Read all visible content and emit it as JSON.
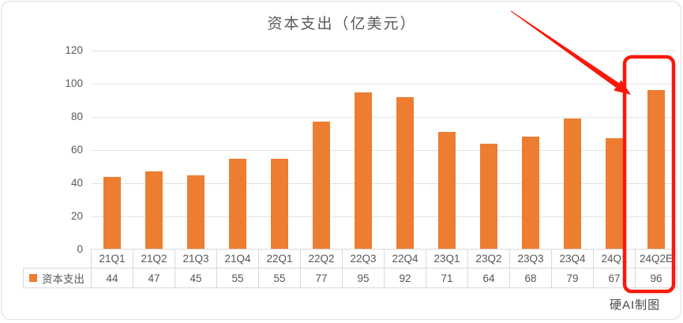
{
  "chart_data": {
    "type": "bar",
    "title": "资本支出（亿美元）",
    "categories": [
      "21Q1",
      "21Q2",
      "21Q3",
      "21Q4",
      "22Q1",
      "22Q2",
      "22Q3",
      "22Q4",
      "23Q1",
      "23Q2",
      "23Q3",
      "23Q4",
      "24Q1",
      "24Q2E"
    ],
    "series": [
      {
        "name": "资本支出",
        "values": [
          44,
          47,
          45,
          55,
          55,
          77,
          95,
          92,
          71,
          64,
          68,
          79,
          67,
          96
        ]
      }
    ],
    "xlabel": "",
    "ylabel": "",
    "ylim": [
      0,
      120
    ],
    "yticks": [
      0,
      20,
      40,
      60,
      80,
      100,
      120
    ],
    "grid": true,
    "legend_position": "data-table-left",
    "data_table": true,
    "bar_color": "#ED7D31"
  },
  "annotation": {
    "color": "#F8190B",
    "highlight_category": "24Q2E",
    "highlighted_value": "96",
    "shape": "arrow-and-box"
  },
  "credit": "硬AI制图",
  "colors": {
    "bar": "#ED7D31",
    "annotation_red": "#F8190B",
    "axis_text": "#595959",
    "gridline": "#E3E3E3",
    "table_border": "#D9D9D9",
    "card_border": "#DEDEDE",
    "background": "#FFFFFF"
  }
}
